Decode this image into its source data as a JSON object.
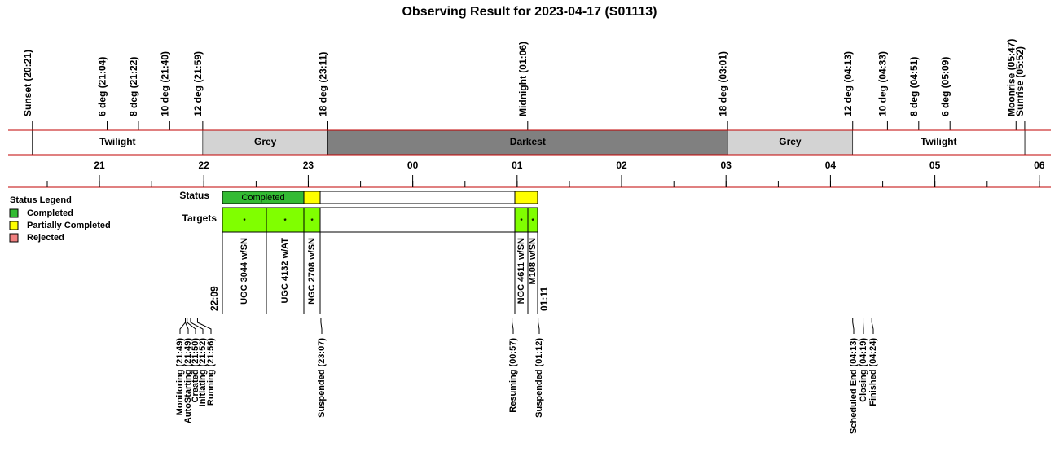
{
  "title": "Observing Result for 2023-04-17 (S01113)",
  "events_top": [
    "Sunset (20:21)",
    "6 deg (21:04)",
    "8 deg (21:22)",
    "10 deg (21:40)",
    "12 deg (21:59)",
    "18 deg (23:11)",
    "Midnight (01:06)",
    "18 deg (03:01)",
    "12 deg (04:13)",
    "10 deg (04:33)",
    "8 deg (04:51)",
    "6 deg (05:09)",
    "Moonrise (05:47)",
    "Sunrise (05:52)"
  ],
  "periods": [
    "Twilight",
    "Grey",
    "Darkest",
    "Grey",
    "Twilight"
  ],
  "hours": [
    "21",
    "22",
    "23",
    "00",
    "01",
    "02",
    "03",
    "04",
    "05",
    "06"
  ],
  "legend": {
    "title": "Status Legend",
    "items": [
      "Completed",
      "Partially Completed",
      "Rejected"
    ]
  },
  "status": {
    "label": "Status",
    "segment": "Completed"
  },
  "targets": {
    "label": "Targets",
    "marker": "*",
    "names": [
      "UGC 3044 w/SN",
      "UGC 4132 w/AT",
      "NGC 2708 w/SN",
      "NGC 4611 w/SN",
      "M108 w/SN"
    ],
    "start": "22:09",
    "end": "01:11"
  },
  "events_bottom": [
    "Monitoring (21:49)",
    "AutoStarting (21:49)",
    "Created (21:50)",
    "Initiating (21:52)",
    "Running (21:56)",
    "Suspended (23:07)",
    "Resuming (00:57)",
    "Suspended (01:12)",
    "Scheduled End (04:13)",
    "Closing (04:19)",
    "Finished (04:24)"
  ]
}
